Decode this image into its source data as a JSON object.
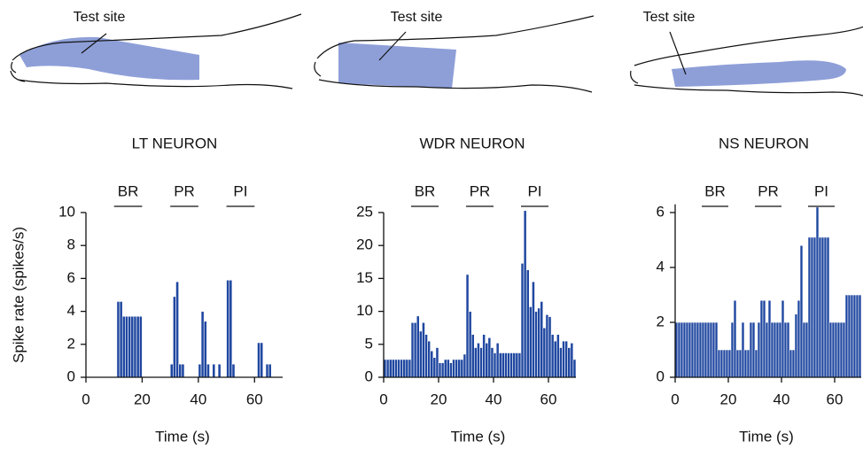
{
  "chart_data": [
    {
      "type": "histogram",
      "title": "LT NEURON",
      "illustration_label": "Test site",
      "ylabel": "Spike rate (spikes/s)",
      "xlabel": "Time (s)",
      "color": "#1f47a0",
      "bins": [
        0,
        1,
        2,
        3,
        4,
        5,
        6,
        7,
        8,
        9,
        10,
        11,
        12,
        13,
        14,
        15,
        16,
        17,
        18,
        19,
        20,
        21,
        22,
        23,
        24,
        25,
        26,
        27,
        28,
        29,
        30,
        31,
        32,
        33,
        34,
        35,
        36,
        37,
        38,
        39,
        40,
        41,
        42,
        43,
        44,
        45,
        46,
        47,
        48,
        49,
        50,
        51,
        52,
        53,
        54,
        55,
        56,
        57,
        58,
        59,
        60,
        61,
        62,
        63,
        64,
        65,
        66,
        67,
        68,
        69,
        70
      ],
      "values": [
        0,
        0,
        0,
        0,
        0,
        0,
        0,
        0,
        0,
        0,
        0,
        4.6,
        4.6,
        3.7,
        3.7,
        3.7,
        3.7,
        3.7,
        3.7,
        3.7,
        0,
        0,
        0,
        0,
        0,
        0,
        0,
        0,
        0,
        0,
        0.8,
        4.9,
        5.8,
        0.8,
        0.8,
        0,
        0,
        0,
        0,
        0,
        0.8,
        4,
        3.4,
        0.8,
        0,
        0.8,
        0,
        0.8,
        0,
        0,
        5.9,
        5.9,
        0.8,
        0,
        0,
        0,
        0,
        0,
        0,
        0,
        0,
        2.1,
        2.1,
        0,
        0.8,
        0.8,
        0,
        0,
        0,
        0
      ],
      "stimuli": [
        {
          "label": "BR",
          "start": 10,
          "end": 20
        },
        {
          "label": "PR",
          "start": 30,
          "end": 40
        },
        {
          "label": "PI",
          "start": 50,
          "end": 60
        }
      ],
      "xlim": [
        0,
        70
      ],
      "xticks": [
        0,
        20,
        40,
        60
      ],
      "ylim": [
        0,
        10
      ],
      "yticks": [
        0,
        2,
        4,
        6,
        8,
        10
      ]
    },
    {
      "type": "histogram",
      "title": "WDR NEURON",
      "illustration_label": "Test site",
      "xlabel": "Time (s)",
      "color": "#1f47a0",
      "bins": [
        0,
        1,
        2,
        3,
        4,
        5,
        6,
        7,
        8,
        9,
        10,
        11,
        12,
        13,
        14,
        15,
        16,
        17,
        18,
        19,
        20,
        21,
        22,
        23,
        24,
        25,
        26,
        27,
        28,
        29,
        30,
        31,
        32,
        33,
        34,
        35,
        36,
        37,
        38,
        39,
        40,
        41,
        42,
        43,
        44,
        45,
        46,
        47,
        48,
        49,
        50,
        51,
        52,
        53,
        54,
        55,
        56,
        57,
        58,
        59,
        60,
        61,
        62,
        63,
        64,
        65,
        66,
        67,
        68,
        69,
        70
      ],
      "values": [
        2.7,
        2.7,
        2.7,
        2.7,
        2.7,
        2.7,
        2.7,
        2.7,
        2.7,
        2.7,
        8.3,
        8.3,
        9.3,
        7,
        8.3,
        6.5,
        5.5,
        4,
        3,
        4.5,
        2.2,
        2.2,
        2.7,
        2.7,
        2.2,
        2.7,
        2.7,
        2.7,
        2.7,
        3.5,
        15.6,
        10,
        6.5,
        4.5,
        5.2,
        4.5,
        6.5,
        5.2,
        6,
        4.5,
        3.7,
        5.2,
        3.7,
        3.7,
        3.7,
        3.7,
        3.7,
        3.7,
        3.7,
        3.7,
        17.3,
        25.3,
        16.3,
        10.7,
        14.5,
        10,
        10.5,
        11.5,
        7.5,
        9.5,
        9.2,
        6.5,
        5.5,
        6.5,
        4.5,
        5.5,
        5.5,
        4.5,
        5.2,
        2.7
      ],
      "stimuli": [
        {
          "label": "BR",
          "start": 10,
          "end": 20
        },
        {
          "label": "PR",
          "start": 30,
          "end": 40
        },
        {
          "label": "PI",
          "start": 50,
          "end": 60
        }
      ],
      "xlim": [
        0,
        70
      ],
      "xticks": [
        0,
        20,
        40,
        60
      ],
      "ylim": [
        0,
        25
      ],
      "yticks": [
        0,
        5,
        10,
        15,
        20,
        25
      ]
    },
    {
      "type": "histogram",
      "title": "NS NEURON",
      "illustration_label": "Test site",
      "xlabel": "Time (s)",
      "color": "#1f47a0",
      "bins": [
        0,
        1,
        2,
        3,
        4,
        5,
        6,
        7,
        8,
        9,
        10,
        11,
        12,
        13,
        14,
        15,
        16,
        17,
        18,
        19,
        20,
        21,
        22,
        23,
        24,
        25,
        26,
        27,
        28,
        29,
        30,
        31,
        32,
        33,
        34,
        35,
        36,
        37,
        38,
        39,
        40,
        41,
        42,
        43,
        44,
        45,
        46,
        47,
        48,
        49,
        50,
        51,
        52,
        53,
        54,
        55,
        56,
        57,
        58,
        59,
        60,
        61,
        62,
        63,
        64,
        65,
        66,
        67,
        68,
        69,
        70
      ],
      "values": [
        2,
        2,
        2,
        2,
        2,
        2,
        2,
        2,
        2,
        2,
        2,
        2,
        2,
        2,
        2,
        2,
        1,
        1,
        1,
        1,
        1,
        2,
        2.8,
        1,
        1,
        2,
        1,
        1,
        2,
        2,
        1,
        2,
        2.8,
        2.8,
        2,
        2.8,
        2,
        2,
        2,
        2,
        2.8,
        2,
        2,
        1,
        1,
        2.3,
        2.8,
        4.8,
        2,
        2,
        5.1,
        5.1,
        5.1,
        6.2,
        5.1,
        5.1,
        5.1,
        5.1,
        2,
        2,
        2,
        2,
        2,
        2,
        3,
        3,
        3,
        3,
        3,
        3
      ],
      "stimuli": [
        {
          "label": "BR",
          "start": 10,
          "end": 20
        },
        {
          "label": "PR",
          "start": 30,
          "end": 40
        },
        {
          "label": "PI",
          "start": 50,
          "end": 60
        }
      ],
      "xlim": [
        0,
        70
      ],
      "xticks": [
        0,
        20,
        40,
        60
      ],
      "ylim": [
        0,
        6.3
      ],
      "yticks": [
        0,
        2,
        4,
        6
      ]
    }
  ]
}
